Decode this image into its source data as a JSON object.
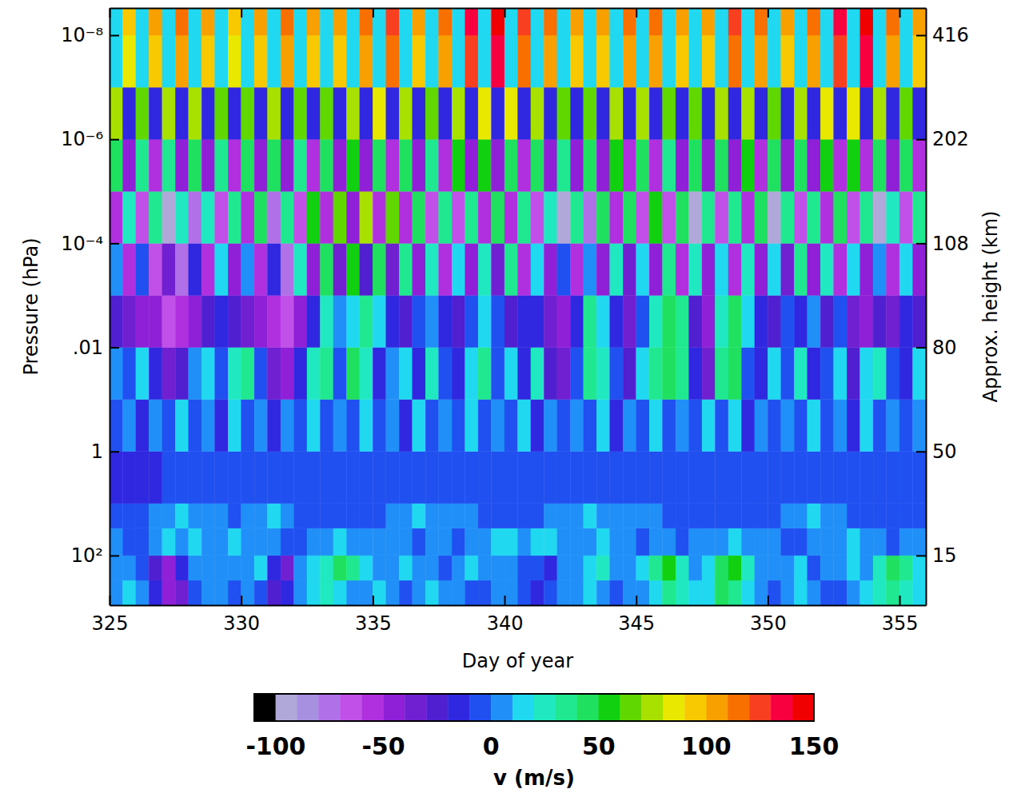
{
  "chart_data": {
    "type": "heatmap",
    "x_label": "Day of year",
    "y_label": "Pressure (hPa)",
    "y2_label": "Approx. height (km)",
    "log": "y",
    "xlim": [
      325,
      356
    ],
    "xticks": [
      325,
      330,
      335,
      340,
      345,
      350,
      355
    ],
    "ylim": [
      900,
      3e-09
    ],
    "yticks": [
      {
        "value": 1e-08,
        "label": "10⁻⁸"
      },
      {
        "value": 1e-06,
        "label": "10⁻⁶"
      },
      {
        "value": 0.0001,
        "label": "10⁻⁴"
      },
      {
        "value": 0.01,
        "label": ".01"
      },
      1,
      {
        "value": 100,
        "label": "10²"
      }
    ],
    "y2ticks": [
      {
        "value": 416,
        "pressure": 1e-08
      },
      {
        "value": 202,
        "pressure": 1e-06
      },
      {
        "value": 108,
        "pressure": 0.0001
      },
      {
        "value": 80,
        "pressure": 0.01
      },
      {
        "value": 50,
        "pressure": 1
      },
      {
        "value": 15,
        "pressure": 100
      }
    ],
    "x_edges": [
      325,
      325.5,
      326,
      326.5,
      327,
      327.5,
      328,
      328.5,
      329,
      329.5,
      330,
      330.5,
      331,
      331.5,
      332,
      332.5,
      333,
      333.5,
      334,
      334.5,
      335,
      335.5,
      336,
      336.5,
      337,
      337.5,
      338,
      338.5,
      339,
      339.5,
      340,
      340.5,
      341,
      341.5,
      342,
      342.5,
      343,
      343.5,
      344,
      344.5,
      345,
      345.5,
      346,
      346.5,
      347,
      347.5,
      348,
      348.5,
      349,
      349.5,
      350,
      350.5,
      351,
      351.5,
      352,
      352.5,
      353,
      353.5,
      354,
      354.5,
      355,
      355.5,
      356
    ],
    "y_edges": [
      900,
      300,
      100,
      30,
      10,
      1,
      0.1,
      0.01,
      0.001,
      0.0001,
      1e-05,
      1e-06,
      1e-07,
      1e-08,
      3e-09
    ],
    "values": [
      [
        5,
        15,
        5,
        -20,
        -50,
        -40,
        -5,
        5,
        5,
        -5,
        5,
        -10,
        -30,
        -20,
        5,
        15,
        25,
        15,
        5,
        5,
        15,
        5,
        -5,
        5,
        15,
        5,
        5,
        -5,
        -5,
        5,
        5,
        -5,
        -20,
        -10,
        5,
        5,
        15,
        5,
        -5,
        5,
        5,
        15,
        35,
        25,
        15,
        15,
        45,
        35,
        15,
        5,
        -5,
        5,
        15,
        5,
        -5,
        -5,
        5,
        15,
        25,
        35,
        25,
        15
      ],
      [
        5,
        5,
        -10,
        -30,
        -50,
        -20,
        5,
        5,
        5,
        5,
        5,
        15,
        -20,
        -40,
        5,
        15,
        25,
        45,
        35,
        15,
        5,
        5,
        15,
        5,
        5,
        -5,
        5,
        15,
        5,
        5,
        5,
        -5,
        -10,
        -20,
        5,
        5,
        15,
        25,
        5,
        5,
        15,
        35,
        55,
        25,
        5,
        15,
        45,
        55,
        25,
        5,
        5,
        5,
        15,
        -10,
        5,
        5,
        15,
        5,
        25,
        45,
        35,
        15
      ],
      [
        5,
        -5,
        -10,
        5,
        15,
        5,
        15,
        5,
        5,
        15,
        5,
        5,
        5,
        -5,
        -5,
        5,
        5,
        15,
        5,
        5,
        5,
        5,
        5,
        -5,
        5,
        5,
        -5,
        5,
        5,
        15,
        15,
        5,
        15,
        15,
        5,
        5,
        5,
        15,
        5,
        5,
        -5,
        5,
        5,
        -5,
        5,
        5,
        5,
        15,
        5,
        5,
        5,
        -5,
        -5,
        5,
        5,
        5,
        15,
        5,
        5,
        -5,
        5,
        5
      ],
      [
        -8,
        -5,
        -5,
        5,
        5,
        10,
        5,
        5,
        5,
        -5,
        5,
        5,
        10,
        5,
        -5,
        -5,
        -5,
        -5,
        -5,
        -5,
        -5,
        5,
        5,
        10,
        5,
        5,
        5,
        5,
        -5,
        -5,
        -5,
        -5,
        -5,
        5,
        5,
        5,
        10,
        5,
        5,
        5,
        5,
        5,
        -5,
        -5,
        -5,
        -5,
        -5,
        -5,
        -5,
        -5,
        -5,
        5,
        5,
        10,
        5,
        5,
        -5,
        -5,
        -5,
        -5,
        -5,
        -5
      ],
      [
        -15,
        -15,
        -12,
        -12,
        -10,
        -10,
        -8,
        -8,
        -10,
        -10,
        -10,
        -8,
        -8,
        -8,
        -10,
        -10,
        -8,
        -8,
        -8,
        -8,
        -10,
        -10,
        -8,
        -8,
        -8,
        -10,
        -10,
        -8,
        -8,
        -8,
        -8,
        -10,
        -10,
        -8,
        -8,
        -8,
        -10,
        -10,
        -8,
        -8,
        -8,
        -8,
        -10,
        -10,
        -8,
        -8,
        -8,
        -10,
        -10,
        -8,
        -8,
        -8,
        -10,
        -10,
        -8,
        -8,
        -10,
        -10,
        -8,
        -8,
        -10,
        -10
      ],
      [
        -10,
        5,
        -15,
        5,
        -10,
        10,
        -5,
        5,
        -15,
        10,
        -10,
        5,
        -20,
        5,
        -10,
        15,
        -10,
        5,
        -5,
        10,
        -10,
        5,
        -15,
        10,
        -10,
        5,
        -10,
        15,
        -5,
        5,
        -10,
        10,
        -15,
        5,
        -10,
        5,
        -5,
        10,
        -15,
        5,
        -10,
        10,
        -10,
        5,
        -5,
        15,
        -10,
        10,
        -15,
        5,
        -10,
        5,
        -5,
        10,
        -10,
        5,
        -15,
        10,
        -10,
        5,
        -10,
        5
      ],
      [
        5,
        -10,
        10,
        -20,
        -40,
        -30,
        0,
        10,
        -10,
        20,
        30,
        -10,
        -40,
        -50,
        -20,
        20,
        30,
        -10,
        40,
        20,
        -20,
        0,
        10,
        -20,
        20,
        -10,
        -20,
        10,
        30,
        -10,
        10,
        -20,
        20,
        -30,
        -40,
        -10,
        30,
        20,
        -10,
        -30,
        10,
        30,
        40,
        30,
        -20,
        -40,
        30,
        40,
        -10,
        -20,
        10,
        -10,
        20,
        -20,
        -10,
        10,
        -30,
        10,
        20,
        -10,
        -20,
        10
      ],
      [
        -30,
        -40,
        -50,
        -50,
        -70,
        -60,
        -50,
        -30,
        -20,
        -30,
        -40,
        -50,
        -60,
        -70,
        -50,
        -20,
        20,
        0,
        10,
        30,
        10,
        -20,
        -30,
        -10,
        0,
        -20,
        -30,
        -10,
        10,
        -10,
        -30,
        -20,
        -20,
        -40,
        -50,
        -20,
        30,
        10,
        -20,
        -40,
        -10,
        20,
        40,
        30,
        -30,
        -50,
        20,
        40,
        10,
        -20,
        -30,
        -10,
        -20,
        0,
        -30,
        -10,
        -40,
        -50,
        -30,
        -40,
        -20,
        -30
      ],
      [
        0,
        -60,
        -10,
        -70,
        -40,
        -80,
        -20,
        -60,
        10,
        -50,
        0,
        -60,
        -20,
        -80,
        20,
        -50,
        40,
        -40,
        50,
        -30,
        40,
        -40,
        30,
        -50,
        20,
        -60,
        10,
        -50,
        20,
        -40,
        30,
        -60,
        10,
        -50,
        -10,
        -60,
        0,
        -50,
        20,
        -40,
        10,
        -50,
        30,
        -60,
        20,
        -50,
        10,
        -60,
        20,
        -50,
        10,
        -40,
        30,
        -50,
        20,
        -60,
        10,
        -50,
        0,
        -60,
        10,
        -50
      ],
      [
        -60,
        20,
        -70,
        30,
        -95,
        25,
        -80,
        20,
        -70,
        30,
        -60,
        40,
        -80,
        30,
        -70,
        50,
        -60,
        60,
        -50,
        70,
        -55,
        60,
        -60,
        40,
        -70,
        30,
        -65,
        35,
        -60,
        40,
        -55,
        30,
        -70,
        25,
        -95,
        30,
        -80,
        40,
        -60,
        45,
        -70,
        50,
        -65,
        40,
        -95,
        30,
        -70,
        35,
        -60,
        40,
        -95,
        30,
        -70,
        35,
        -60,
        40,
        -65,
        30,
        -95,
        25,
        -70,
        30
      ],
      [
        40,
        -50,
        30,
        -60,
        35,
        -45,
        45,
        -50,
        30,
        -55,
        40,
        -50,
        45,
        -45,
        35,
        -55,
        40,
        -50,
        50,
        -45,
        45,
        -60,
        40,
        -50,
        35,
        -55,
        50,
        -45,
        55,
        -50,
        45,
        -55,
        40,
        -50,
        35,
        -45,
        40,
        -50,
        50,
        -55,
        45,
        -60,
        35,
        -50,
        40,
        -45,
        45,
        -50,
        50,
        -55,
        40,
        -45,
        45,
        -50,
        50,
        -55,
        55,
        -60,
        45,
        -50,
        40,
        -55
      ],
      [
        70,
        -20,
        60,
        -20,
        75,
        -20,
        70,
        -20,
        60,
        -20,
        65,
        -20,
        70,
        -20,
        60,
        -20,
        65,
        -20,
        70,
        -20,
        80,
        -20,
        70,
        -20,
        65,
        -20,
        75,
        -20,
        85,
        -20,
        80,
        -20,
        70,
        -20,
        60,
        -20,
        65,
        -20,
        70,
        -20,
        75,
        -20,
        65,
        -20,
        60,
        -20,
        70,
        -20,
        75,
        -20,
        65,
        -20,
        70,
        -20,
        80,
        -20,
        85,
        -20,
        70,
        -20,
        60,
        -20
      ],
      [
        10,
        80,
        10,
        90,
        10,
        100,
        10,
        90,
        10,
        85,
        10,
        95,
        10,
        100,
        10,
        95,
        10,
        90,
        10,
        100,
        10,
        110,
        10,
        90,
        10,
        100,
        10,
        120,
        10,
        130,
        10,
        110,
        10,
        100,
        10,
        90,
        10,
        90,
        10,
        100,
        10,
        100,
        10,
        90,
        10,
        90,
        10,
        110,
        10,
        100,
        10,
        90,
        10,
        100,
        10,
        120,
        10,
        130,
        10,
        100,
        10,
        90
      ],
      [
        15,
        90,
        15,
        100,
        15,
        110,
        15,
        100,
        15,
        95,
        15,
        100,
        15,
        110,
        15,
        105,
        15,
        100,
        15,
        110,
        15,
        120,
        15,
        100,
        15,
        110,
        15,
        130,
        15,
        140,
        15,
        120,
        15,
        110,
        15,
        100,
        15,
        100,
        15,
        110,
        15,
        110,
        15,
        100,
        15,
        100,
        15,
        120,
        15,
        110,
        15,
        100,
        15,
        110,
        15,
        130,
        15,
        140,
        15,
        110,
        15,
        100
      ]
    ],
    "colorbar": {
      "label": "v (m/s)",
      "range": [
        -110,
        150
      ],
      "ticks": [
        -100,
        -50,
        0,
        50,
        100,
        150
      ],
      "colors": [
        "#000000",
        "#b0a8d8",
        "#a890e0",
        "#b070e8",
        "#c050e8",
        "#b030e0",
        "#9020d8",
        "#7020d0",
        "#5020d0",
        "#3028e0",
        "#2050f0",
        "#2090f8",
        "#20d8f0",
        "#20e8c0",
        "#20e890",
        "#20e060",
        "#10d010",
        "#60d800",
        "#a8e000",
        "#e8e800",
        "#f8c800",
        "#f8a000",
        "#f87000",
        "#f84020",
        "#f80040",
        "#f00000"
      ]
    }
  }
}
